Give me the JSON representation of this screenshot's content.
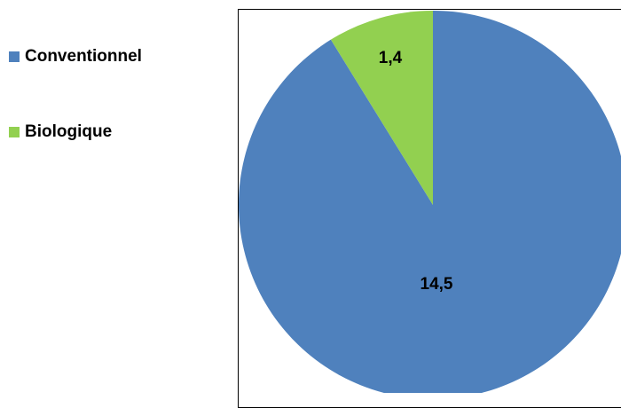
{
  "chart_data": {
    "type": "pie",
    "title": "",
    "slices": [
      {
        "label": "Conventionnel",
        "value": 14.5,
        "display": "14,5",
        "color": "#4f81bd"
      },
      {
        "label": "Biologique",
        "value": 1.4,
        "display": "1,4",
        "color": "#92d050"
      }
    ],
    "legend_position": "left",
    "start_angle": "top",
    "direction": "clockwise"
  }
}
